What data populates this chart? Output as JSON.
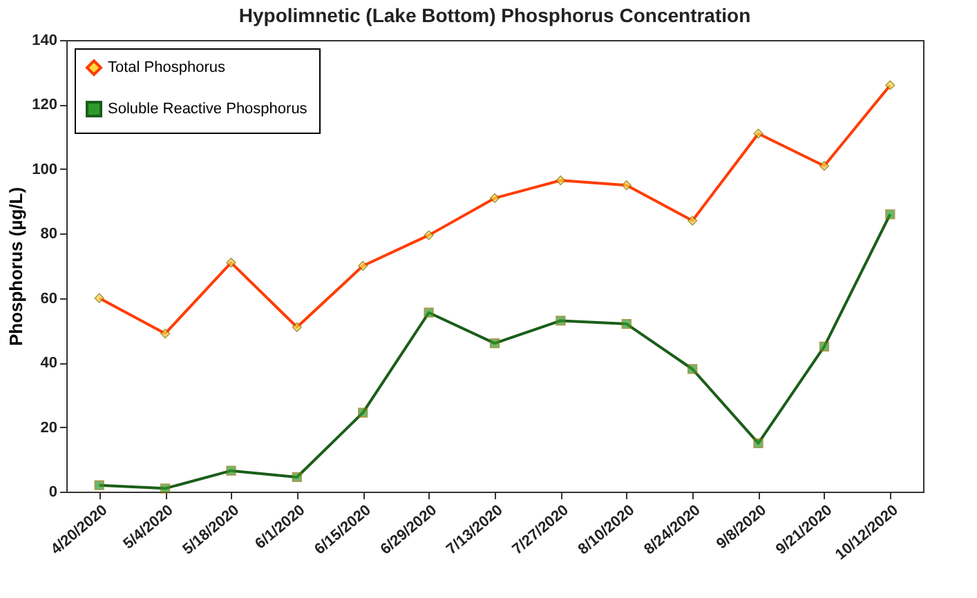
{
  "chart_data": {
    "type": "line",
    "title": "Hypolimnetic (Lake Bottom) Phosphorus  Concentration",
    "ylabel": "Phosphorus  (µg/L)",
    "categories": [
      "4/20/2020",
      "5/4/2020",
      "5/18/2020",
      "6/1/2020",
      "6/15/2020",
      "6/29/2020",
      "7/13/2020",
      "7/27/2020",
      "8/10/2020",
      "8/24/2020",
      "9/8/2020",
      "9/21/2020",
      "10/12/2020"
    ],
    "series": [
      {
        "name": "Total Phosphorus",
        "color": "#ff3c00",
        "marker": "diamond",
        "values": [
          60,
          49,
          71,
          51,
          70,
          79.5,
          91,
          96.5,
          95,
          84,
          111,
          101,
          126
        ]
      },
      {
        "name": "Soluble Reactive Phosphorus",
        "color": "#1a5e1a",
        "marker": "square",
        "values": [
          2,
          1,
          6.5,
          4.5,
          24.5,
          55.5,
          46,
          53,
          52,
          38,
          15,
          45,
          86
        ]
      }
    ],
    "ylim": [
      0,
      140
    ],
    "yticks": [
      0,
      20,
      40,
      60,
      80,
      100,
      120,
      140
    ],
    "grid": false,
    "legend": "top left",
    "line_style": "solid"
  }
}
